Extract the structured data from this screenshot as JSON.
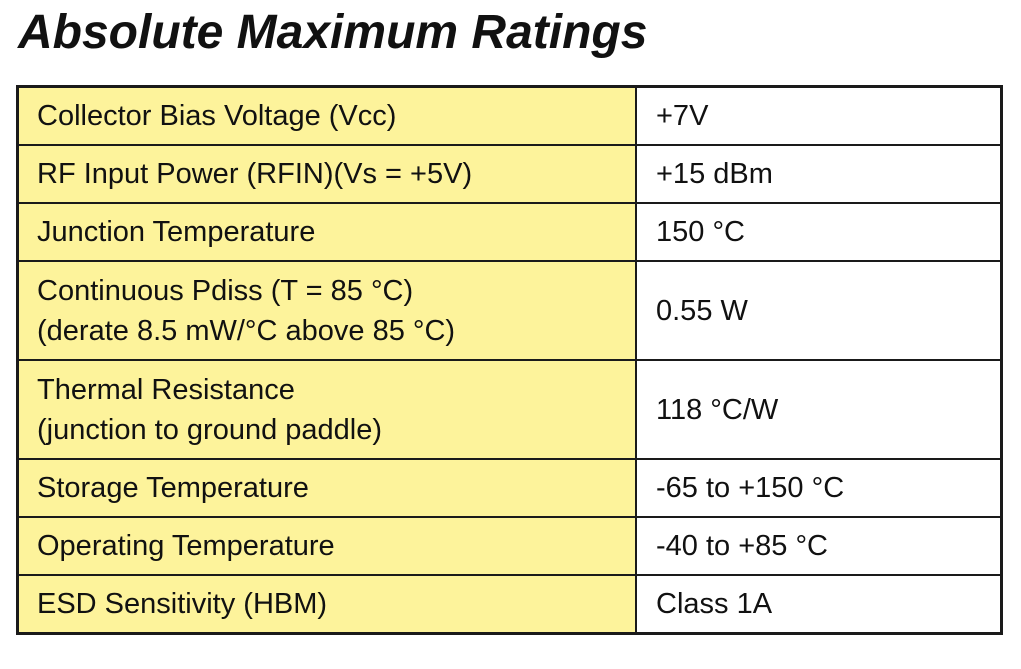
{
  "title": "Absolute Maximum Ratings",
  "colors": {
    "parameter_cell_bg": "#fdf39b",
    "value_cell_bg": "#ffffff",
    "border": "#1a1a1a"
  },
  "rows": [
    {
      "parameter": [
        "Collector Bias Voltage (Vcc)"
      ],
      "value": "+7V"
    },
    {
      "parameter": [
        "RF Input Power (RFIN)(Vs = +5V)"
      ],
      "value": "+15 dBm"
    },
    {
      "parameter": [
        "Junction Temperature"
      ],
      "value": "150 °C"
    },
    {
      "parameter": [
        "Continuous Pdiss (T = 85 °C)",
        "(derate 8.5 mW/°C above 85 °C)"
      ],
      "value": "0.55 W"
    },
    {
      "parameter": [
        "Thermal Resistance",
        "(junction to ground paddle)"
      ],
      "value": "118 °C/W"
    },
    {
      "parameter": [
        "Storage Temperature"
      ],
      "value": "-65 to +150 °C"
    },
    {
      "parameter": [
        "Operating Temperature"
      ],
      "value": "-40 to +85 °C"
    },
    {
      "parameter": [
        "ESD Sensitivity (HBM)"
      ],
      "value": "Class 1A"
    }
  ]
}
